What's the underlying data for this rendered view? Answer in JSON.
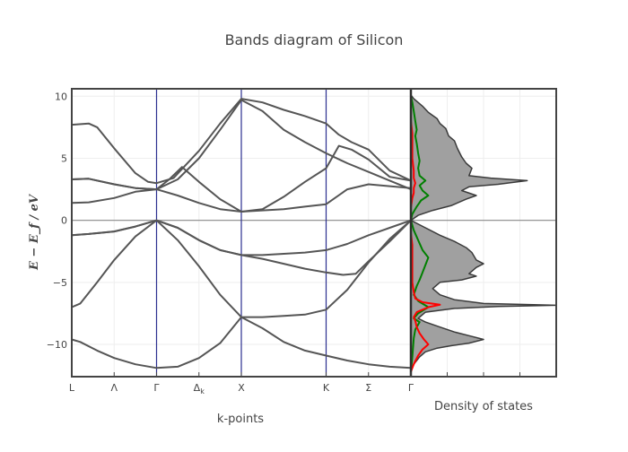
{
  "chart_data": {
    "title": "Bands diagram of Silicon",
    "xlabel": "k-points",
    "ylabel": "E − E_f / eV",
    "ylim": [
      -12.6,
      10.6
    ],
    "yticks": [
      10,
      5,
      0,
      -5,
      -10
    ],
    "grid": true,
    "kpath": {
      "labels": [
        "L",
        "Λ",
        "Γ",
        "Δ_k",
        "X",
        "K",
        "Σ",
        "Γ"
      ],
      "positions": [
        0,
        0.5,
        1.0,
        1.5,
        2.0,
        3.0,
        3.5,
        4.0
      ],
      "high_symmetry_lines": [
        1.0,
        2.0,
        3.0
      ]
    },
    "series": [
      {
        "x": [
          0,
          0.1,
          0.3,
          0.5,
          0.75,
          1.0,
          1.25,
          1.5,
          1.75,
          2.0,
          2.25,
          2.5,
          2.75,
          3.0,
          3.25,
          3.5,
          3.75,
          4.0
        ],
        "y": [
          -9.6,
          -9.8,
          -10.5,
          -11.1,
          -11.6,
          -11.9,
          -11.8,
          -11.1,
          -9.9,
          -7.8,
          -8.7,
          -9.8,
          -10.5,
          -10.9,
          -11.3,
          -11.6,
          -11.8,
          -11.9
        ]
      },
      {
        "x": [
          0,
          0.1,
          0.3,
          0.5,
          0.75,
          1.0,
          1.25,
          1.5,
          1.75,
          2.0,
          2.25,
          2.5,
          2.75,
          3.0,
          3.25,
          3.5,
          3.75,
          4.0
        ],
        "y": [
          -7.0,
          -6.7,
          -5.0,
          -3.2,
          -1.3,
          0.0,
          -1.6,
          -3.7,
          -6.0,
          -7.8,
          -7.8,
          -7.7,
          -7.6,
          -7.2,
          -5.6,
          -3.4,
          -1.5,
          0.0
        ]
      },
      {
        "x": [
          0,
          0.2,
          0.5,
          0.75,
          1.0,
          1.25,
          1.5,
          1.75,
          2.0,
          2.25,
          2.5,
          2.75,
          3.0,
          3.2,
          3.35,
          3.5,
          3.75,
          4.0
        ],
        "y": [
          -1.2,
          -1.1,
          -0.9,
          -0.5,
          0.0,
          -0.6,
          -1.6,
          -2.4,
          -2.8,
          -3.1,
          -3.5,
          -3.9,
          -4.2,
          -4.4,
          -4.3,
          -3.3,
          -1.7,
          0.0
        ]
      },
      {
        "x": [
          0,
          0.2,
          0.5,
          0.75,
          1.0,
          1.25,
          1.5,
          1.75,
          2.0,
          2.25,
          2.5,
          2.75,
          3.0,
          3.25,
          3.5,
          3.75,
          4.0
        ],
        "y": [
          -1.2,
          -1.1,
          -0.9,
          -0.5,
          0.0,
          -0.6,
          -1.6,
          -2.4,
          -2.8,
          -2.8,
          -2.7,
          -2.6,
          -2.4,
          -1.9,
          -1.2,
          -0.6,
          0.0
        ]
      },
      {
        "x": [
          0,
          0.2,
          0.5,
          0.75,
          1.0,
          1.25,
          1.5,
          1.75,
          2.0,
          2.25,
          2.5,
          2.75,
          3.0,
          3.25,
          3.5,
          3.75,
          4.0
        ],
        "y": [
          1.4,
          1.45,
          1.8,
          2.3,
          2.5,
          2.0,
          1.4,
          0.9,
          0.7,
          0.8,
          0.9,
          1.1,
          1.3,
          2.5,
          2.9,
          2.75,
          2.6
        ]
      },
      {
        "x": [
          0,
          0.2,
          0.5,
          0.75,
          1.0,
          1.15,
          1.3,
          1.5,
          1.75,
          2.0,
          2.25,
          2.5,
          2.75,
          3.0,
          3.15,
          3.3,
          3.5,
          3.75,
          4.0
        ],
        "y": [
          3.3,
          3.35,
          2.9,
          2.6,
          2.5,
          3.3,
          4.3,
          3.1,
          1.7,
          0.7,
          0.9,
          1.9,
          3.1,
          4.2,
          6.0,
          5.7,
          4.9,
          3.5,
          3.2
        ]
      },
      {
        "x": [
          0,
          0.2,
          0.5,
          0.75,
          1.0,
          1.25,
          1.5,
          1.75,
          2.0,
          2.25,
          2.5,
          2.75,
          3.0,
          3.25,
          3.5,
          3.75,
          4.0
        ],
        "y": [
          3.3,
          3.35,
          2.9,
          2.6,
          2.5,
          3.3,
          5.0,
          7.3,
          9.7,
          8.8,
          7.3,
          6.3,
          5.4,
          4.6,
          3.9,
          3.2,
          2.5
        ]
      },
      {
        "x": [
          0,
          0.2,
          0.3,
          0.5,
          0.75,
          0.9,
          1.0,
          1.2,
          1.5,
          1.75,
          2.0,
          2.25,
          2.5,
          2.75,
          3.0,
          3.15,
          3.3,
          3.5,
          3.75,
          4.0
        ],
        "y": [
          7.7,
          7.8,
          7.5,
          5.8,
          3.8,
          3.1,
          3.0,
          3.4,
          5.6,
          7.8,
          9.8,
          9.5,
          8.9,
          8.4,
          7.8,
          6.9,
          6.3,
          5.7,
          4.0,
          3.2
        ]
      }
    ],
    "dos_total": [
      [
        0,
        -12.2
      ],
      [
        0.02,
        -11.6
      ],
      [
        0.06,
        -11.0
      ],
      [
        0.1,
        -10.6
      ],
      [
        0.18,
        -10.3
      ],
      [
        0.28,
        -10.1
      ],
      [
        0.4,
        -9.9
      ],
      [
        0.5,
        -9.6
      ],
      [
        0.4,
        -9.3
      ],
      [
        0.3,
        -9.0
      ],
      [
        0.2,
        -8.6
      ],
      [
        0.1,
        -8.2
      ],
      [
        0.05,
        -7.9
      ],
      [
        0.1,
        -7.4
      ],
      [
        0.3,
        -7.1
      ],
      [
        0.6,
        -6.95
      ],
      [
        1.0,
        -6.85
      ],
      [
        0.5,
        -6.7
      ],
      [
        0.3,
        -6.4
      ],
      [
        0.2,
        -6.0
      ],
      [
        0.15,
        -5.5
      ],
      [
        0.2,
        -5.0
      ],
      [
        0.35,
        -4.8
      ],
      [
        0.45,
        -4.5
      ],
      [
        0.4,
        -4.3
      ],
      [
        0.45,
        -3.8
      ],
      [
        0.5,
        -3.5
      ],
      [
        0.45,
        -3.2
      ],
      [
        0.42,
        -2.6
      ],
      [
        0.38,
        -2.2
      ],
      [
        0.3,
        -1.7
      ],
      [
        0.2,
        -1.2
      ],
      [
        0.1,
        -0.6
      ],
      [
        0.0,
        0.0
      ],
      [
        0.05,
        0.4
      ],
      [
        0.15,
        0.8
      ],
      [
        0.28,
        1.2
      ],
      [
        0.38,
        1.7
      ],
      [
        0.45,
        2.0
      ],
      [
        0.35,
        2.4
      ],
      [
        0.4,
        2.7
      ],
      [
        0.6,
        2.9
      ],
      [
        0.8,
        3.2
      ],
      [
        0.55,
        3.4
      ],
      [
        0.4,
        3.6
      ],
      [
        0.42,
        4.2
      ],
      [
        0.38,
        4.6
      ],
      [
        0.35,
        5.1
      ],
      [
        0.32,
        5.8
      ],
      [
        0.3,
        6.4
      ],
      [
        0.26,
        6.8
      ],
      [
        0.24,
        7.4
      ],
      [
        0.2,
        7.8
      ],
      [
        0.18,
        8.2
      ],
      [
        0.12,
        8.7
      ],
      [
        0.08,
        9.2
      ],
      [
        0.02,
        9.8
      ],
      [
        0.0,
        10.1
      ]
    ],
    "dos_projected_green": [
      [
        0,
        -12.2
      ],
      [
        0.01,
        -11.0
      ],
      [
        0.02,
        -9.5
      ],
      [
        0.03,
        -8.8
      ],
      [
        0.06,
        -8.2
      ],
      [
        0.02,
        -7.9
      ],
      [
        0.05,
        -7.5
      ],
      [
        0.12,
        -7.0
      ],
      [
        0.05,
        -6.5
      ],
      [
        0.02,
        -6.0
      ],
      [
        0.04,
        -5.3
      ],
      [
        0.06,
        -4.8
      ],
      [
        0.08,
        -4.2
      ],
      [
        0.1,
        -3.6
      ],
      [
        0.12,
        -3.0
      ],
      [
        0.08,
        -2.4
      ],
      [
        0.05,
        -1.6
      ],
      [
        0.02,
        -0.8
      ],
      [
        0.0,
        0.0
      ],
      [
        0.01,
        0.5
      ],
      [
        0.04,
        1.1
      ],
      [
        0.07,
        1.6
      ],
      [
        0.12,
        2.0
      ],
      [
        0.08,
        2.4
      ],
      [
        0.06,
        2.8
      ],
      [
        0.1,
        3.2
      ],
      [
        0.06,
        3.6
      ],
      [
        0.05,
        4.2
      ],
      [
        0.06,
        4.8
      ],
      [
        0.05,
        5.4
      ],
      [
        0.04,
        6.2
      ],
      [
        0.03,
        6.8
      ],
      [
        0.04,
        7.3
      ],
      [
        0.03,
        8.0
      ],
      [
        0.02,
        8.8
      ],
      [
        0.01,
        9.5
      ],
      [
        0.0,
        10.0
      ]
    ],
    "dos_projected_red": [
      [
        0,
        -12.2
      ],
      [
        0.02,
        -11.6
      ],
      [
        0.05,
        -10.9
      ],
      [
        0.08,
        -10.4
      ],
      [
        0.12,
        -10.0
      ],
      [
        0.09,
        -9.6
      ],
      [
        0.06,
        -9.1
      ],
      [
        0.04,
        -8.6
      ],
      [
        0.03,
        -8.1
      ],
      [
        0.02,
        -7.8
      ],
      [
        0.04,
        -7.4
      ],
      [
        0.12,
        -7.0
      ],
      [
        0.2,
        -6.8
      ],
      [
        0.08,
        -6.6
      ],
      [
        0.03,
        -6.3
      ],
      [
        0.02,
        -5.8
      ],
      [
        0.01,
        -5.0
      ],
      [
        0.01,
        -4.0
      ],
      [
        0.01,
        -3.0
      ],
      [
        0.01,
        -2.0
      ],
      [
        0.0,
        -1.0
      ],
      [
        0.0,
        0.0
      ],
      [
        0.0,
        1.0
      ],
      [
        0.01,
        1.8
      ],
      [
        0.02,
        2.2
      ],
      [
        0.02,
        2.6
      ],
      [
        0.03,
        3.0
      ],
      [
        0.02,
        3.4
      ],
      [
        0.02,
        4.0
      ],
      [
        0.01,
        5.0
      ],
      [
        0.01,
        6.0
      ],
      [
        0.01,
        7.0
      ],
      [
        0.0,
        8.0
      ],
      [
        0.0,
        9.0
      ],
      [
        0.0,
        10.0
      ]
    ],
    "dos_label": "Density of states",
    "colors": {
      "bands": "#555555",
      "sym_lines": "#2b2f8f",
      "dos_fill": "#a0a0a0",
      "dos_edge": "#3a3a3a",
      "green": "#008000",
      "red": "#ff0000",
      "frame": "#444444",
      "grid": "#eeeeee"
    }
  }
}
